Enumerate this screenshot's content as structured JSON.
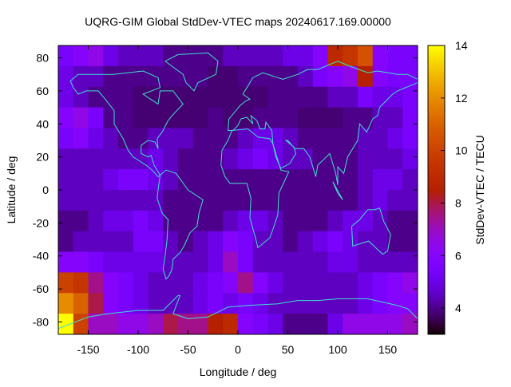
{
  "chart_data": {
    "type": "heatmap",
    "title": "UQRG-GIM Global StdDev-VTEC maps 20240617.169.00000",
    "xlabel": "Longitude / deg",
    "ylabel": "Latitude / deg",
    "cblabel": "StdDev-VTEC / TECU",
    "xlim": [
      -180,
      180
    ],
    "ylim": [
      -87.5,
      87.5
    ],
    "cbrange": [
      3,
      14
    ],
    "xticks": [
      -150,
      -100,
      -50,
      0,
      50,
      100,
      150
    ],
    "yticks": [
      -80,
      -60,
      -40,
      -20,
      0,
      20,
      40,
      60,
      80
    ],
    "cbticks": [
      4,
      6,
      8,
      10,
      12,
      14
    ],
    "colormap": "gnuplot rgbformulae 7,5,15 (black-purple-red-yellow)",
    "coastline_color": "#40e0d0",
    "grid": false,
    "lon_centers": [
      -172.5,
      -157.5,
      -142.5,
      -127.5,
      -112.5,
      -97.5,
      -82.5,
      -67.5,
      -52.5,
      -37.5,
      -22.5,
      -7.5,
      7.5,
      22.5,
      37.5,
      52.5,
      67.5,
      82.5,
      97.5,
      112.5,
      127.5,
      142.5,
      157.5,
      172.5
    ],
    "lat_centers": [
      81.25,
      68.75,
      56.25,
      43.75,
      31.25,
      18.75,
      6.25,
      -6.25,
      -18.75,
      -31.25,
      -43.75,
      -56.25,
      -68.75,
      -81.25
    ],
    "values": [
      [
        5.5,
        6,
        6.5,
        5,
        4.5,
        4.5,
        4.5,
        4,
        4,
        4,
        4,
        4.5,
        4.5,
        4.5,
        4.5,
        5,
        5,
        6,
        9,
        9.5,
        10.5,
        6,
        5.5,
        5.5
      ],
      [
        5,
        4.5,
        4.5,
        4,
        4,
        4,
        4,
        4,
        4,
        4,
        3.8,
        3.8,
        4,
        4,
        4,
        4,
        4.5,
        5.5,
        6,
        6.5,
        8.5,
        6,
        5.5,
        5.5
      ],
      [
        5,
        4.5,
        4,
        4,
        4,
        3.8,
        3.8,
        3.8,
        3.8,
        3.8,
        3.8,
        3.8,
        3.8,
        3.8,
        4,
        4,
        4,
        4,
        4.5,
        4.5,
        5.5,
        5,
        5,
        5.5
      ],
      [
        6,
        6.5,
        5.5,
        4,
        4,
        3.8,
        3.8,
        3.8,
        3.8,
        3.8,
        4,
        3.8,
        3.8,
        4,
        4,
        4,
        3.8,
        3.8,
        3.8,
        4,
        4,
        4.5,
        4.5,
        5.5
      ],
      [
        5.5,
        6,
        5,
        4.5,
        4,
        4,
        4.5,
        4.5,
        4.5,
        4,
        4,
        4,
        4.5,
        5,
        5,
        4.5,
        4,
        4,
        4,
        4,
        4.5,
        4.5,
        5,
        5.5
      ],
      [
        4.5,
        4.5,
        4.5,
        4.5,
        4.5,
        4.5,
        5,
        4.5,
        4,
        4,
        4,
        4.5,
        5,
        5.5,
        5,
        4.5,
        4.5,
        4,
        4,
        4,
        4.5,
        4.5,
        4.5,
        5
      ],
      [
        4.5,
        4.5,
        4.5,
        5,
        5.5,
        5.5,
        5,
        4.5,
        4,
        4,
        4,
        4,
        4,
        4,
        4,
        4,
        4,
        4,
        4,
        4,
        4.5,
        5,
        5,
        4.5
      ],
      [
        4.5,
        4.5,
        4.5,
        4.5,
        4.5,
        4.5,
        4.5,
        4,
        4,
        4,
        4,
        4,
        4,
        4,
        4,
        4,
        4,
        4,
        4,
        4,
        4.5,
        5,
        4.5,
        4.5
      ],
      [
        4,
        4,
        4.5,
        5,
        5,
        5.5,
        5,
        4,
        4,
        4,
        4,
        4.5,
        5,
        5,
        4.5,
        4,
        4,
        4,
        4.5,
        5,
        5,
        4.5,
        4,
        4
      ],
      [
        4,
        4.5,
        4.5,
        4.5,
        4.5,
        5.5,
        5.5,
        4.5,
        4,
        4.5,
        5,
        6,
        5.5,
        4.5,
        4.5,
        4,
        4.5,
        5,
        5.5,
        5,
        4.5,
        4.5,
        4,
        4
      ],
      [
        6,
        6,
        5.5,
        5,
        5,
        5,
        5,
        4.5,
        4.5,
        4.5,
        5,
        7,
        5.5,
        4.5,
        4.5,
        4.5,
        4.5,
        4.5,
        5,
        5,
        4.5,
        4.5,
        4.5,
        4.5
      ],
      [
        10,
        9.5,
        7.5,
        6,
        5.5,
        5,
        4.5,
        4.5,
        4.5,
        5,
        5.5,
        6,
        7.5,
        6,
        5,
        4.5,
        4.5,
        4.5,
        4.5,
        4.5,
        5,
        5.5,
        6,
        6.5
      ],
      [
        12,
        11,
        8,
        6,
        5.5,
        5,
        4.5,
        4.5,
        4.5,
        5,
        5.5,
        5,
        5.5,
        5,
        4.5,
        4.5,
        4.5,
        4.5,
        4.5,
        4.5,
        5,
        5.5,
        6,
        6
      ],
      [
        14,
        10,
        7,
        7,
        6.5,
        6.5,
        7,
        8,
        7.5,
        7.5,
        8.5,
        9,
        6,
        5.5,
        5,
        4,
        4,
        4,
        5,
        6.5,
        6.5,
        6.5,
        6.5,
        7
      ]
    ],
    "coastlines": [
      [
        [
          -168,
          66
        ],
        [
          -160,
          70
        ],
        [
          -140,
          70
        ],
        [
          -125,
          70
        ],
        [
          -95,
          72
        ],
        [
          -80,
          68
        ],
        [
          -78,
          62
        ],
        [
          -95,
          58
        ],
        [
          -90,
          56
        ],
        [
          -80,
          52
        ],
        [
          -78,
          60
        ],
        [
          -65,
          60
        ],
        [
          -55,
          52
        ],
        [
          -66,
          45
        ],
        [
          -70,
          42
        ],
        [
          -76,
          35
        ],
        [
          -81,
          31
        ],
        [
          -80,
          25
        ],
        [
          -83,
          29
        ],
        [
          -90,
          30
        ],
        [
          -97,
          27
        ],
        [
          -97,
          22
        ],
        [
          -90,
          20
        ],
        [
          -87,
          21
        ],
        [
          -84,
          15
        ],
        [
          -78,
          9
        ],
        [
          -80,
          8
        ],
        [
          -86,
          12
        ],
        [
          -92,
          15
        ],
        [
          -105,
          20
        ],
        [
          -110,
          24
        ],
        [
          -115,
          31
        ],
        [
          -118,
          34
        ],
        [
          -124,
          40
        ],
        [
          -124,
          48
        ],
        [
          -133,
          55
        ],
        [
          -140,
          60
        ],
        [
          -152,
          60
        ],
        [
          -160,
          58
        ],
        [
          -165,
          62
        ],
        [
          -168,
          66
        ]
      ],
      [
        [
          -73,
          78
        ],
        [
          -60,
          82
        ],
        [
          -30,
          83
        ],
        [
          -20,
          78
        ],
        [
          -22,
          70
        ],
        [
          -40,
          65
        ],
        [
          -44,
          60
        ],
        [
          -52,
          65
        ],
        [
          -55,
          70
        ],
        [
          -73,
          78
        ]
      ],
      [
        [
          -78,
          9
        ],
        [
          -72,
          12
        ],
        [
          -62,
          10
        ],
        [
          -50,
          0
        ],
        [
          -35,
          -6
        ],
        [
          -39,
          -14
        ],
        [
          -41,
          -22
        ],
        [
          -48,
          -26
        ],
        [
          -54,
          -34
        ],
        [
          -58,
          -38
        ],
        [
          -65,
          -42
        ],
        [
          -66,
          -48
        ],
        [
          -69,
          -52
        ],
        [
          -72,
          -54
        ],
        [
          -75,
          -48
        ],
        [
          -73,
          -40
        ],
        [
          -71,
          -30
        ],
        [
          -70,
          -18
        ],
        [
          -76,
          -14
        ],
        [
          -81,
          -5
        ],
        [
          -80,
          0
        ],
        [
          -78,
          9
        ]
      ],
      [
        [
          -17,
          15
        ],
        [
          -16,
          24
        ],
        [
          -10,
          30
        ],
        [
          -6,
          36
        ],
        [
          10,
          37
        ],
        [
          20,
          32
        ],
        [
          32,
          31
        ],
        [
          35,
          28
        ],
        [
          43,
          12
        ],
        [
          51,
          11
        ],
        [
          41,
          -2
        ],
        [
          40,
          -15
        ],
        [
          35,
          -24
        ],
        [
          32,
          -29
        ],
        [
          20,
          -35
        ],
        [
          18,
          -30
        ],
        [
          12,
          -17
        ],
        [
          13,
          -5
        ],
        [
          9,
          4
        ],
        [
          -8,
          4
        ],
        [
          -13,
          8
        ],
        [
          -17,
          15
        ]
      ],
      [
        [
          -10,
          36
        ],
        [
          -9,
          43
        ],
        [
          -2,
          48
        ],
        [
          2,
          51
        ],
        [
          8,
          54
        ],
        [
          12,
          55
        ],
        [
          5,
          58
        ],
        [
          10,
          63
        ],
        [
          15,
          68
        ],
        [
          25,
          71
        ],
        [
          40,
          68
        ],
        [
          45,
          67
        ],
        [
          60,
          70
        ],
        [
          70,
          73
        ],
        [
          80,
          73
        ],
        [
          100,
          78
        ],
        [
          112,
          75
        ],
        [
          130,
          71
        ],
        [
          140,
          72
        ],
        [
          160,
          70
        ],
        [
          170,
          70
        ],
        [
          180,
          67
        ]
      ],
      [
        [
          180,
          65
        ],
        [
          160,
          60
        ],
        [
          155,
          58
        ],
        [
          142,
          50
        ],
        [
          140,
          45
        ],
        [
          135,
          43
        ],
        [
          129,
          35
        ],
        [
          122,
          40
        ],
        [
          120,
          30
        ],
        [
          110,
          20
        ],
        [
          106,
          10
        ],
        [
          100,
          14
        ],
        [
          100,
          3
        ],
        [
          98,
          10
        ],
        [
          92,
          22
        ],
        [
          80,
          15
        ],
        [
          78,
          8
        ],
        [
          72,
          20
        ],
        [
          66,
          25
        ],
        [
          57,
          25
        ],
        [
          50,
          30
        ],
        [
          48,
          30
        ],
        [
          56,
          26
        ],
        [
          58,
          22
        ],
        [
          52,
          16
        ],
        [
          43,
          13
        ],
        [
          38,
          20
        ],
        [
          35,
          28
        ],
        [
          34,
          36
        ],
        [
          28,
          41
        ],
        [
          27,
          37
        ],
        [
          22,
          37
        ],
        [
          19,
          42
        ],
        [
          13,
          45
        ],
        [
          15,
          40
        ],
        [
          9,
          44
        ],
        [
          3,
          43
        ],
        [
          0,
          39
        ],
        [
          -5,
          36
        ],
        [
          -10,
          36
        ]
      ],
      [
        [
          95,
          5
        ],
        [
          105,
          -6
        ],
        [
          100,
          -2
        ],
        [
          95,
          5
        ]
      ],
      [
        [
          114,
          -22
        ],
        [
          122,
          -18
        ],
        [
          130,
          -12
        ],
        [
          137,
          -12
        ],
        [
          142,
          -11
        ],
        [
          146,
          -19
        ],
        [
          153,
          -27
        ],
        [
          150,
          -37
        ],
        [
          145,
          -39
        ],
        [
          138,
          -35
        ],
        [
          131,
          -31
        ],
        [
          115,
          -34
        ],
        [
          114,
          -22
        ]
      ],
      [
        [
          -180,
          -84
        ],
        [
          -150,
          -77
        ],
        [
          -130,
          -75
        ],
        [
          -100,
          -73
        ],
        [
          -75,
          -73
        ],
        [
          -60,
          -64
        ],
        [
          -58,
          -64
        ],
        [
          -65,
          -75
        ],
        [
          -50,
          -78
        ],
        [
          -30,
          -77
        ],
        [
          -10,
          -71
        ],
        [
          10,
          -70
        ],
        [
          40,
          -69
        ],
        [
          60,
          -67
        ],
        [
          80,
          -67
        ],
        [
          100,
          -66
        ],
        [
          130,
          -66
        ],
        [
          160,
          -70
        ],
        [
          170,
          -72
        ],
        [
          180,
          -78
        ]
      ]
    ]
  }
}
